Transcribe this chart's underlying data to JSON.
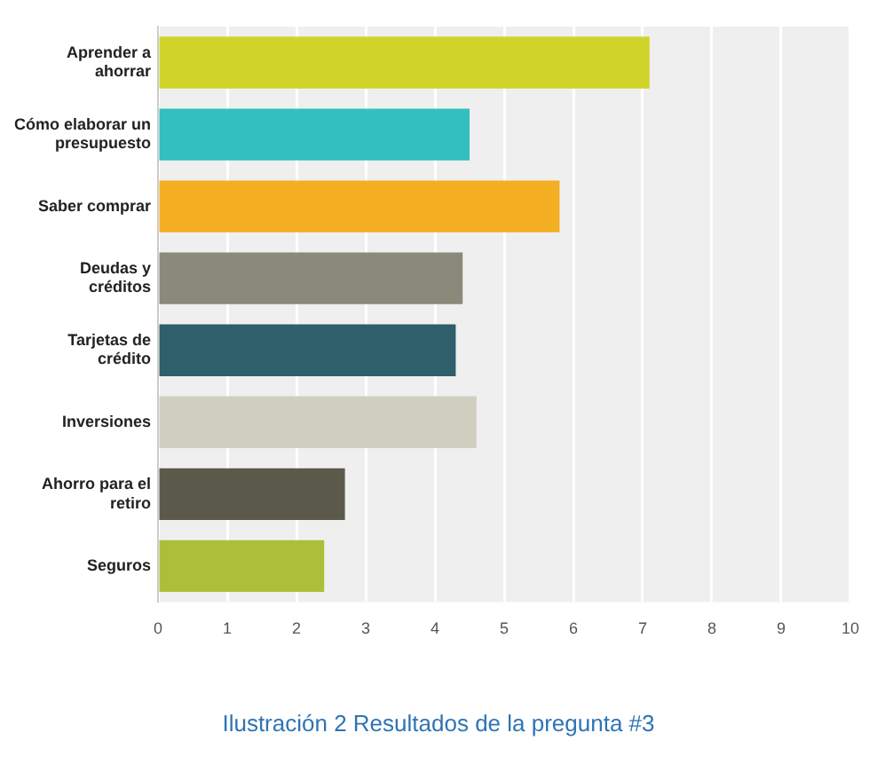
{
  "chart_data": {
    "type": "bar",
    "orientation": "horizontal",
    "categories": [
      "Aprender a ahorrar",
      "Cómo elaborar un presupuesto",
      "Saber comprar",
      "Deudas y créditos",
      "Tarjetas de crédito",
      "Inversiones",
      "Ahorro para el retiro",
      "Seguros"
    ],
    "values": [
      7.1,
      4.5,
      5.8,
      4.4,
      4.3,
      4.6,
      2.7,
      2.4
    ],
    "colors": [
      "#d0d42a",
      "#33bfc0",
      "#f4ae22",
      "#8a8a7a",
      "#2e5f6b",
      "#cfcfc0",
      "#5b5a4a",
      "#abbf3a"
    ],
    "xlim": [
      0,
      10
    ],
    "xticks": [
      0,
      1,
      2,
      3,
      4,
      5,
      6,
      7,
      8,
      9,
      10
    ],
    "grid": "x",
    "legend": false,
    "annotations": [
      "Ilustración 2 Resultados de la pregunta #3"
    ]
  }
}
